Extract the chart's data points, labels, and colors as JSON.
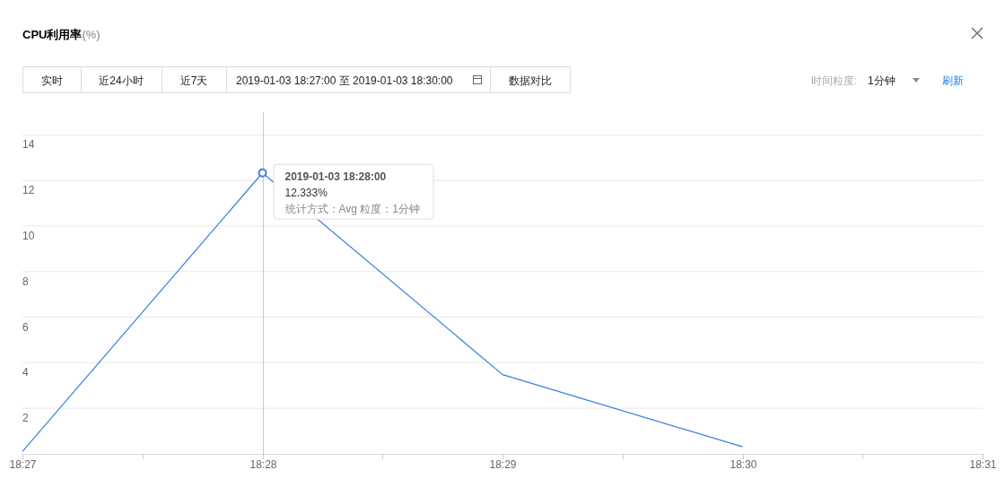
{
  "chart_data": {
    "type": "line",
    "title": "CPU利用率",
    "x": [
      "2019-01-03T18:27",
      "2019-01-03T18:28",
      "2019-01-03T18:29",
      "2019-01-03T18:30"
    ],
    "series": [
      {
        "color": "#3a7de0",
        "values": [
          0.1,
          12.333,
          3.48,
          0.31
        ]
      }
    ],
    "xlim": [
      "2019-01-03T18:27",
      "2019-01-03T18:31"
    ],
    "xticks": [
      {
        "value": "2019-01-03T18:27",
        "label": "18:27"
      },
      {
        "value": "2019-01-03T18:27:30",
        "label": null
      },
      {
        "value": "2019-01-03T18:28",
        "label": "18:28"
      },
      {
        "value": "2019-01-03T18:28:30",
        "label": null
      },
      {
        "value": "2019-01-03T18:29",
        "label": "18:29"
      },
      {
        "value": "2019-01-03T18:29:30",
        "label": null
      },
      {
        "value": "2019-01-03T18:30",
        "label": "18:30"
      },
      {
        "value": "2019-01-03T18:30:30",
        "label": null
      },
      {
        "value": "2019-01-03T18:31",
        "label": "18:31"
      }
    ],
    "ylim": [
      0,
      15
    ],
    "yticks": [
      2,
      4,
      6,
      8,
      10,
      12,
      14
    ],
    "grid": "y",
    "marker": "none",
    "line_style": "solid",
    "ref_lines": [
      {
        "axis": "x",
        "value": "2019-01-03T18:28",
        "color": "#c8c8c8"
      }
    ],
    "annotations": [
      "(%)",
      "实时",
      "近24小时",
      "近7天",
      "2019-01-03 18:27:00 至 2019-01-03 18:30:00",
      "数据对比",
      "时间粒度:",
      "1分钟",
      "刷新",
      {
        "text": "2019-01-03 18:28:00",
        "x": "2019-01-03T18:28",
        "y": 12.333
      },
      "12.333%",
      "统计方式：Avg 粒度：1分钟"
    ]
  }
}
